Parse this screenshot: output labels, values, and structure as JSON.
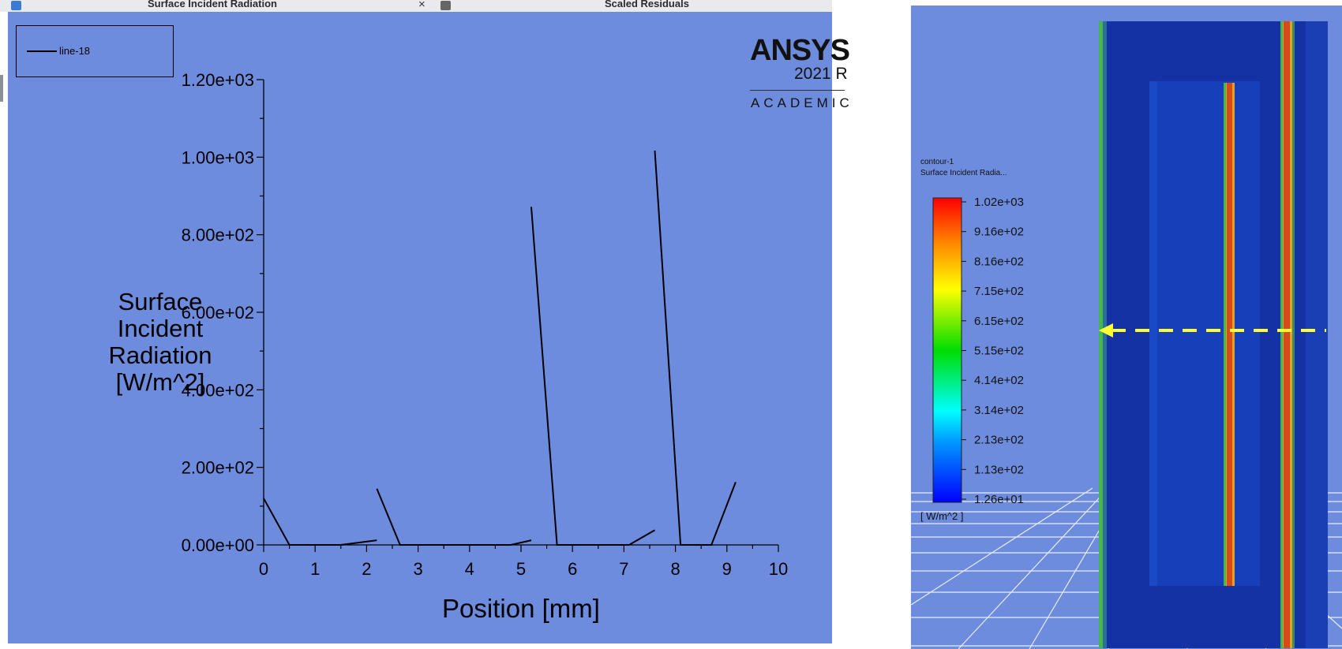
{
  "tabs": [
    {
      "title": "Surface Incident Radiation",
      "close": "×",
      "icon": "tab-icon",
      "icon_color": "#3a7bd5"
    },
    {
      "title": "Scaled Residuals",
      "icon": "tab-icon",
      "icon_color": "#666666"
    }
  ],
  "plot": {
    "legend_label": "line-18",
    "brand": {
      "name": "ANSYS",
      "version": "2021 R",
      "edition": "ACADEMIC"
    }
  },
  "chart_data": {
    "type": "line",
    "title": "",
    "xlabel": "Position [mm]",
    "ylabel_lines": [
      "Surface",
      "Incident",
      "Radiation",
      "[W/m^2]"
    ],
    "xlim": [
      0,
      10
    ],
    "ylim": [
      0,
      1200
    ],
    "xticks": [
      "0",
      "1",
      "2",
      "3",
      "4",
      "5",
      "6",
      "7",
      "8",
      "9",
      "10"
    ],
    "yticks": [
      "0.00e+00",
      "2.00e+02",
      "4.00e+02",
      "6.00e+02",
      "8.00e+02",
      "1.00e+03",
      "1.20e+03"
    ],
    "series": [
      {
        "name": "line-18",
        "segments": [
          [
            [
              0.0,
              120
            ],
            [
              0.5,
              0
            ],
            [
              1.5,
              0
            ],
            [
              2.2,
              12
            ]
          ],
          [
            [
              2.2,
              145
            ],
            [
              2.65,
              0
            ],
            [
              4.8,
              0
            ],
            [
              5.2,
              12
            ]
          ],
          [
            [
              5.2,
              872
            ],
            [
              5.7,
              0
            ],
            [
              7.1,
              0
            ],
            [
              7.6,
              38
            ]
          ],
          [
            [
              7.6,
              1017
            ],
            [
              8.1,
              0
            ],
            [
              8.7,
              0
            ],
            [
              9.17,
              162
            ]
          ]
        ]
      }
    ]
  },
  "contour": {
    "title": "contour-1",
    "field": "Surface Incident Radia...",
    "unit": "[ W/m^2 ]",
    "levels": [
      "1.02e+03",
      "9.16e+02",
      "8.16e+02",
      "7.15e+02",
      "6.15e+02",
      "5.15e+02",
      "4.14e+02",
      "3.14e+02",
      "2.13e+02",
      "1.13e+02",
      "1.26e+01"
    ],
    "colors": {
      "domain": "#1532a4",
      "hot_strip": "#d64a1c",
      "warm_strip": "#e2a22a",
      "edge_green": "#43b84a",
      "sample_line": "#ffff33"
    }
  }
}
